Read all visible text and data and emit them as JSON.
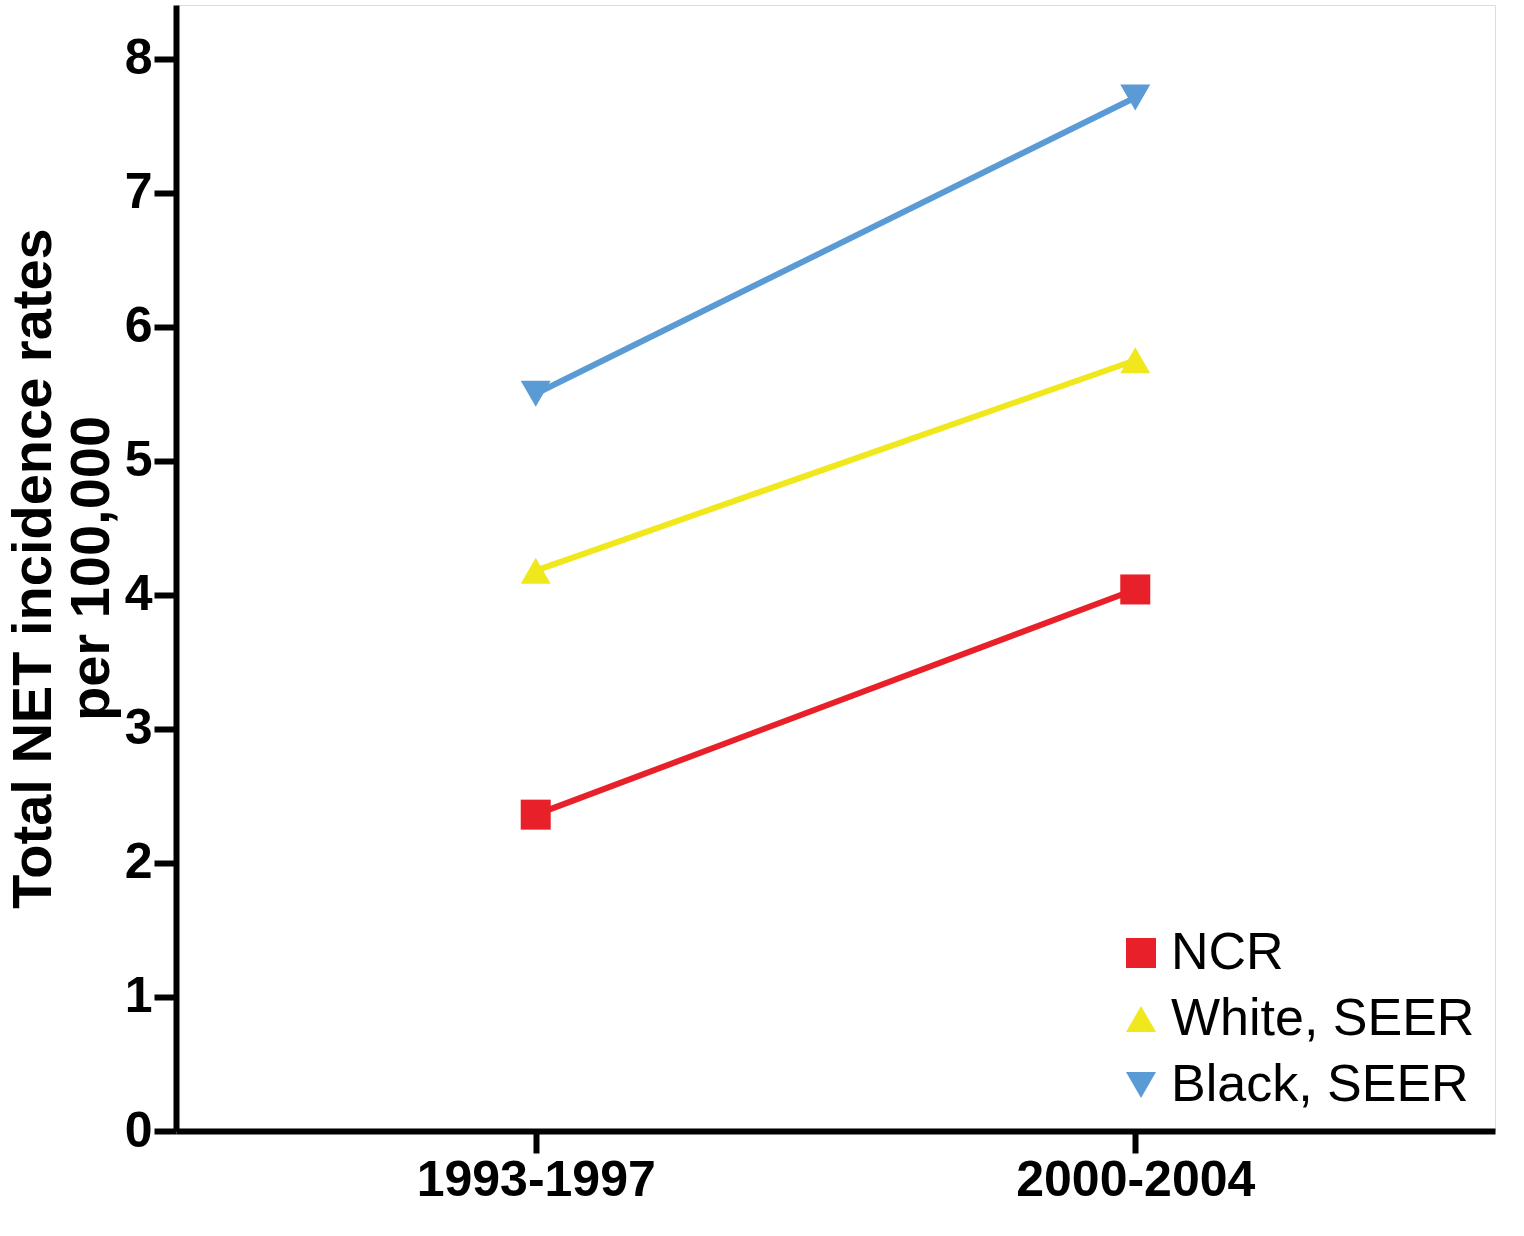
{
  "chart_data": {
    "type": "line",
    "ylabel": "Total NET incidence rates\nper 100,000",
    "categories": [
      "1993-1997",
      "2000-2004"
    ],
    "series": [
      {
        "name": "NCR",
        "color": "#e8202a",
        "marker": "square",
        "values": [
          2.36,
          4.04
        ]
      },
      {
        "name": "White, SEER",
        "color": "#f0e81c",
        "marker": "triangle",
        "values": [
          4.18,
          5.75
        ]
      },
      {
        "name": "Black, SEER",
        "color": "#5b9bd5",
        "marker": "triangle-down",
        "values": [
          5.5,
          7.71
        ]
      }
    ],
    "ylim": [
      0,
      8.4
    ],
    "yticks": [
      0,
      1,
      2,
      3,
      4,
      5,
      6,
      7,
      8
    ],
    "grid": false,
    "legend": "bottom right",
    "line_style": "solid"
  }
}
